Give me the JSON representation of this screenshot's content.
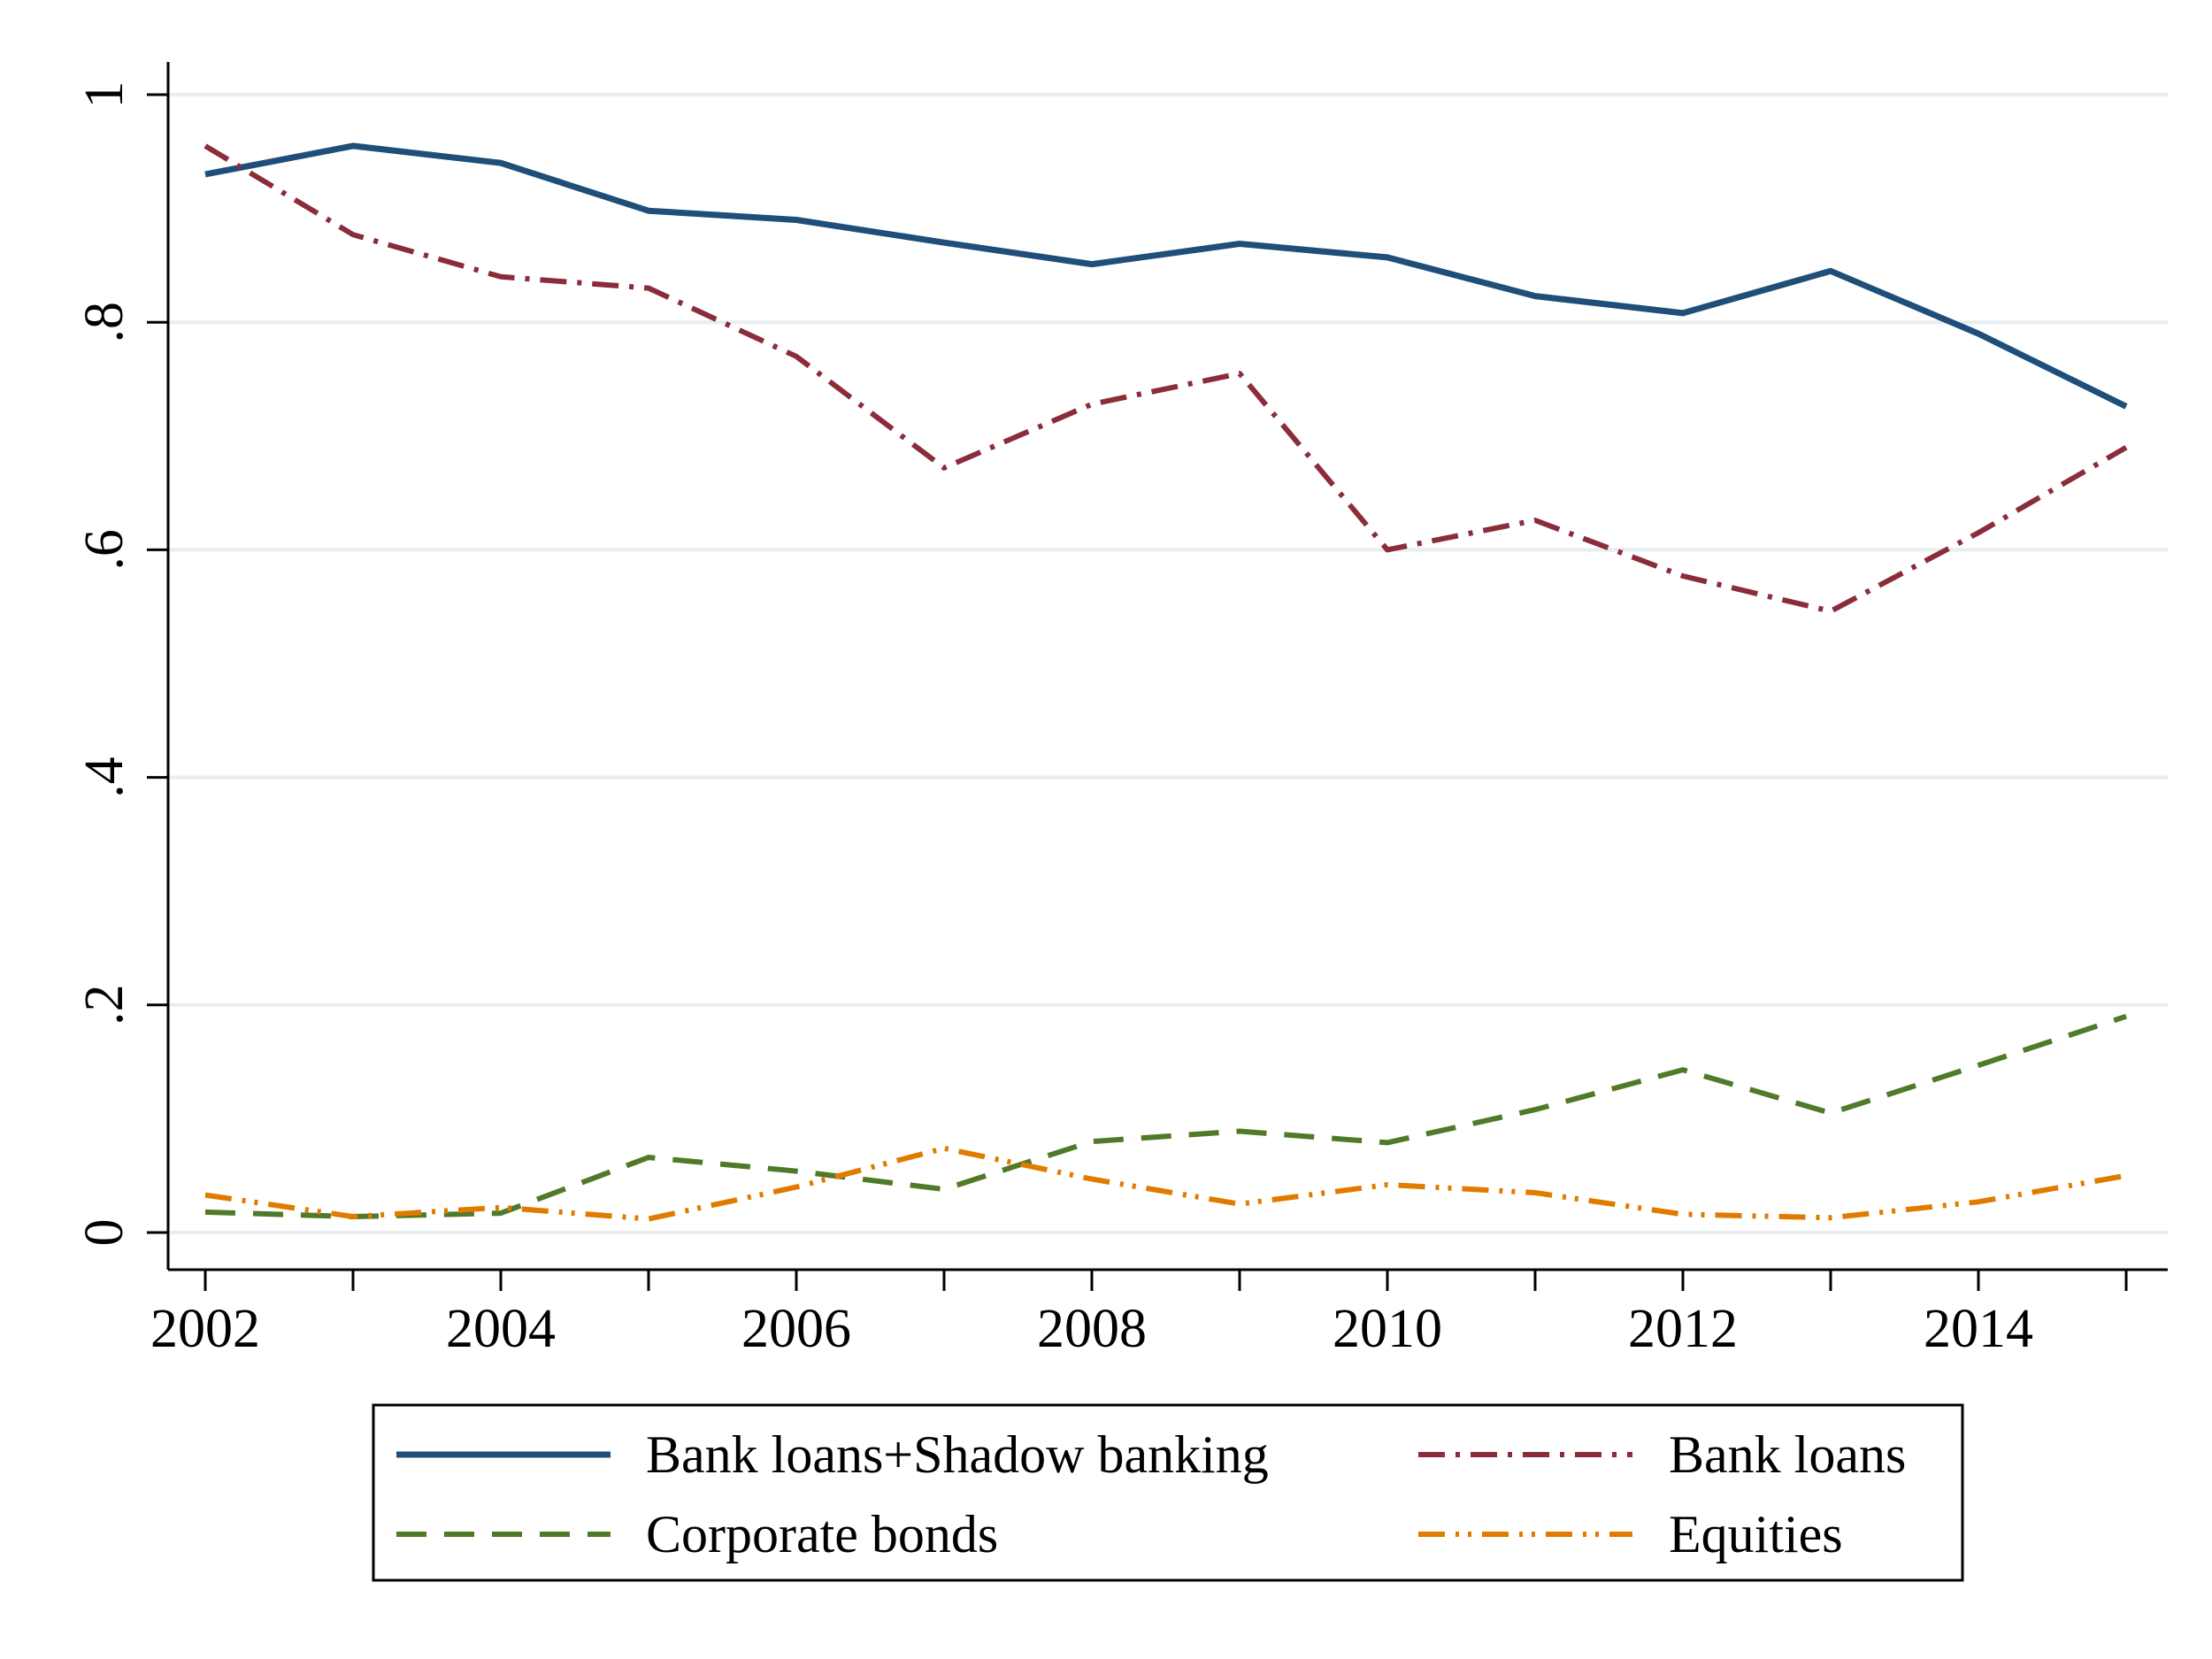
{
  "chart_data": {
    "type": "line",
    "title": "",
    "xlabel": "",
    "ylabel": "",
    "x": [
      2002,
      2003,
      2004,
      2005,
      2006,
      2007,
      2008,
      2009,
      2010,
      2011,
      2012,
      2013,
      2014,
      2015
    ],
    "xlim": [
      2002,
      2015
    ],
    "ylim": [
      0,
      1
    ],
    "x_ticks": [
      2002,
      2004,
      2006,
      2008,
      2010,
      2012,
      2014
    ],
    "x_tick_labels": [
      "2002",
      "2004",
      "2006",
      "2008",
      "2010",
      "2012",
      "2014"
    ],
    "y_ticks": [
      0,
      0.2,
      0.4,
      0.6,
      0.8,
      1
    ],
    "y_tick_labels": [
      "0",
      ".2",
      ".4",
      ".6",
      ".8",
      "1"
    ],
    "grid": "horizontal",
    "legend_position": "bottom",
    "series": [
      {
        "name": "Bank loans+Shadow banking",
        "color": "#1f4e79",
        "style": "solid",
        "values": [
          0.93,
          0.955,
          0.94,
          0.898,
          0.89,
          0.87,
          0.851,
          0.869,
          0.857,
          0.823,
          0.808,
          0.845,
          0.79,
          0.726
        ]
      },
      {
        "name": "Bank loans",
        "color": "#8b2c3a",
        "style": "dash-dot",
        "values": [
          0.955,
          0.877,
          0.84,
          0.83,
          0.77,
          0.672,
          0.728,
          0.755,
          0.6,
          0.626,
          0.577,
          0.546,
          0.615,
          0.69
        ]
      },
      {
        "name": "Corporate bonds",
        "color": "#4f7a28",
        "style": "dash",
        "values": [
          0.018,
          0.014,
          0.017,
          0.066,
          0.054,
          0.038,
          0.08,
          0.089,
          0.079,
          0.108,
          0.143,
          0.105,
          0.147,
          0.19
        ]
      },
      {
        "name": "Equities",
        "color": "#e07b00",
        "style": "dash-dot-dot",
        "values": [
          0.033,
          0.014,
          0.022,
          0.012,
          0.04,
          0.074,
          0.047,
          0.025,
          0.042,
          0.035,
          0.016,
          0.013,
          0.027,
          0.05
        ]
      }
    ]
  }
}
